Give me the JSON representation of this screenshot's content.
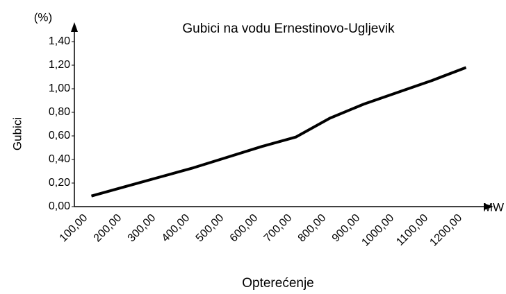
{
  "chart_data": {
    "type": "line",
    "title": "Gubici na vodu Ernestinovo-Ugljevik",
    "y_label": "Gubici",
    "y_unit": "(%)",
    "x_label": "Opterećenje",
    "x_unit": "MW",
    "categories": [
      "100,00",
      "200,00",
      "300,00",
      "400,00",
      "500,00",
      "600,00",
      "700,00",
      "800,00",
      "900,00",
      "1000,00",
      "1100,00",
      "1200,00"
    ],
    "series": [
      {
        "name": "Gubici",
        "color": "#000000",
        "values": [
          0.09,
          0.17,
          0.25,
          0.33,
          0.42,
          0.51,
          0.59,
          0.75,
          0.87,
          0.97,
          1.07,
          1.18
        ]
      }
    ],
    "ylim": [
      0,
      1.4
    ],
    "yticks": [
      {
        "value": 0,
        "label": "0,00"
      },
      {
        "value": 0.2,
        "label": "0,20"
      },
      {
        "value": 0.4,
        "label": "0,40"
      },
      {
        "value": 0.6,
        "label": "0,60"
      },
      {
        "value": 0.8,
        "label": "0,80"
      },
      {
        "value": 1.0,
        "label": "1,00"
      },
      {
        "value": 1.2,
        "label": "1,20"
      },
      {
        "value": 1.4,
        "label": "1,40"
      }
    ]
  }
}
